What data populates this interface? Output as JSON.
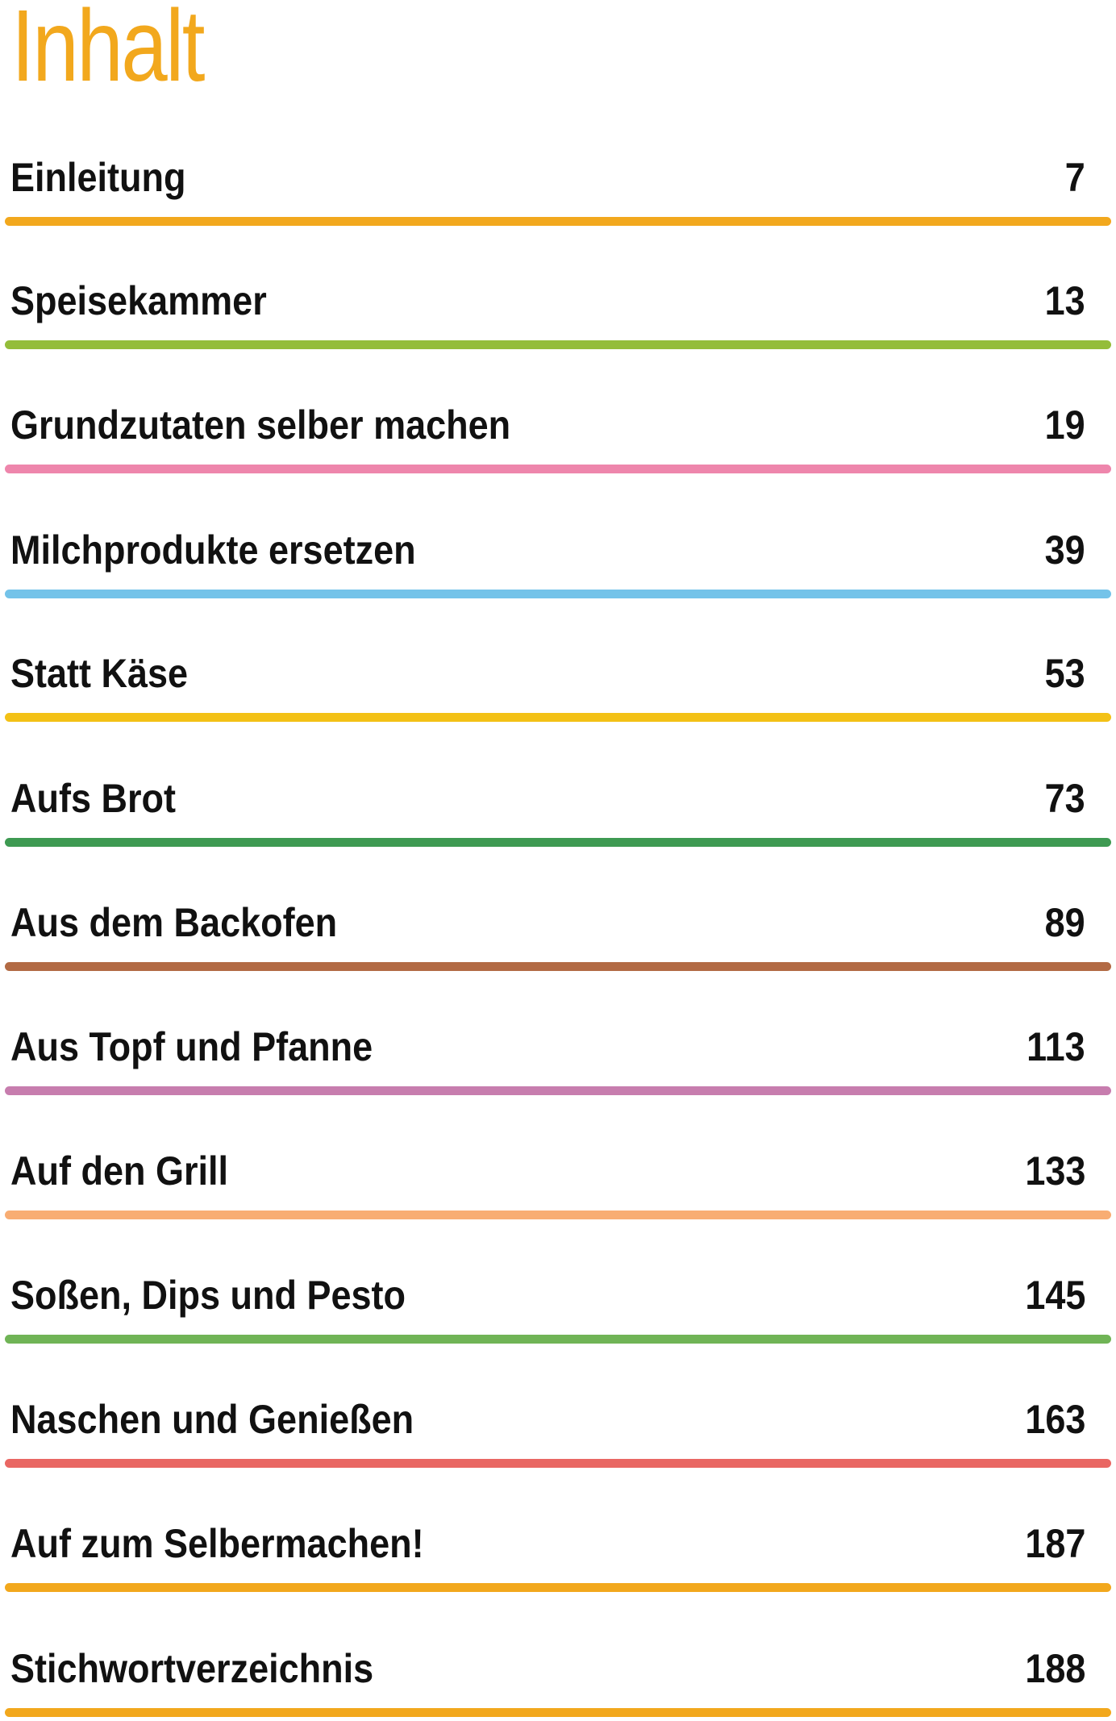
{
  "page": {
    "title": "Inhalt",
    "title_color": "#f2a81d"
  },
  "toc": [
    {
      "label": "Einleitung",
      "page": "7",
      "color": "#f2a81d"
    },
    {
      "label": "Speisekammer",
      "page": "13",
      "color": "#94bd3a"
    },
    {
      "label": "Grundzutaten selber machen",
      "page": "19",
      "color": "#ee86ac"
    },
    {
      "label": "Milchprodukte ersetzen",
      "page": "39",
      "color": "#74c3e9"
    },
    {
      "label": "Statt Käse",
      "page": "53",
      "color": "#f3c116"
    },
    {
      "label": "Aufs Brot",
      "page": "73",
      "color": "#3e9a52"
    },
    {
      "label": "Aus dem Backofen",
      "page": "89",
      "color": "#b26a44"
    },
    {
      "label": "Aus Topf und Pfanne",
      "page": "113",
      "color": "#c77dae"
    },
    {
      "label": "Auf den Grill",
      "page": "133",
      "color": "#f8ad73"
    },
    {
      "label": "Soßen, Dips und Pesto",
      "page": "145",
      "color": "#70b456"
    },
    {
      "label": "Naschen und Genießen",
      "page": "163",
      "color": "#e96763"
    },
    {
      "label": "Auf zum Selbermachen!",
      "page": "187",
      "color": "#f2a81d"
    },
    {
      "label": "Stichwortverzeichnis",
      "page": "188",
      "color": "#f2a81d"
    }
  ]
}
